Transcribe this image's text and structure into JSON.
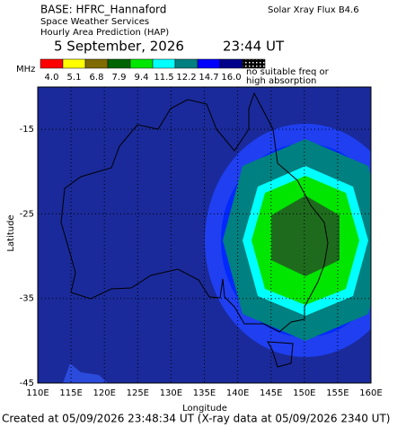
{
  "header": {
    "base": "BASE: HFRC_Hannaford",
    "service": "Space Weather Services",
    "product": "Hourly Area Prediction (HAP)",
    "date": "5 September, 2026",
    "time": "23:44 UT",
    "xray": "Solar Xray Flux B4.6"
  },
  "legend": {
    "unit": "MHz",
    "colors": [
      "#ff0000",
      "#ffff00",
      "#7f6b00",
      "#006400",
      "#00e600",
      "#00ffff",
      "#008080",
      "#0000ff",
      "#00008b",
      "#000000"
    ],
    "labels": [
      "4.0",
      "5.1",
      "6.8",
      "7.9",
      "9.4",
      "11.5",
      "12.2",
      "14.7",
      "16.0"
    ],
    "note": [
      "no suitable freq or",
      "high absorption"
    ]
  },
  "map": {
    "xlabel": "Longitude",
    "ylabel": "Latitude",
    "xlim": [
      110,
      160
    ],
    "ylim": [
      -45,
      -10
    ],
    "xticks": [
      {
        "value": 110,
        "label": "110E"
      },
      {
        "value": 115,
        "label": "115E"
      },
      {
        "value": 120,
        "label": "120E"
      },
      {
        "value": 125,
        "label": "125E"
      },
      {
        "value": 130,
        "label": "130E"
      },
      {
        "value": 135,
        "label": "135E"
      },
      {
        "value": 140,
        "label": "140E"
      },
      {
        "value": 145,
        "label": "145E"
      },
      {
        "value": 150,
        "label": "150E"
      },
      {
        "value": 155,
        "label": "155E"
      },
      {
        "value": 160,
        "label": "160E"
      }
    ],
    "yticks": [
      -15,
      -25,
      -35,
      -45
    ]
  },
  "footer": "Created at 05/09/2026 23:48:34 UT (X-ray data at 05/09/2026 2340 UT)"
}
